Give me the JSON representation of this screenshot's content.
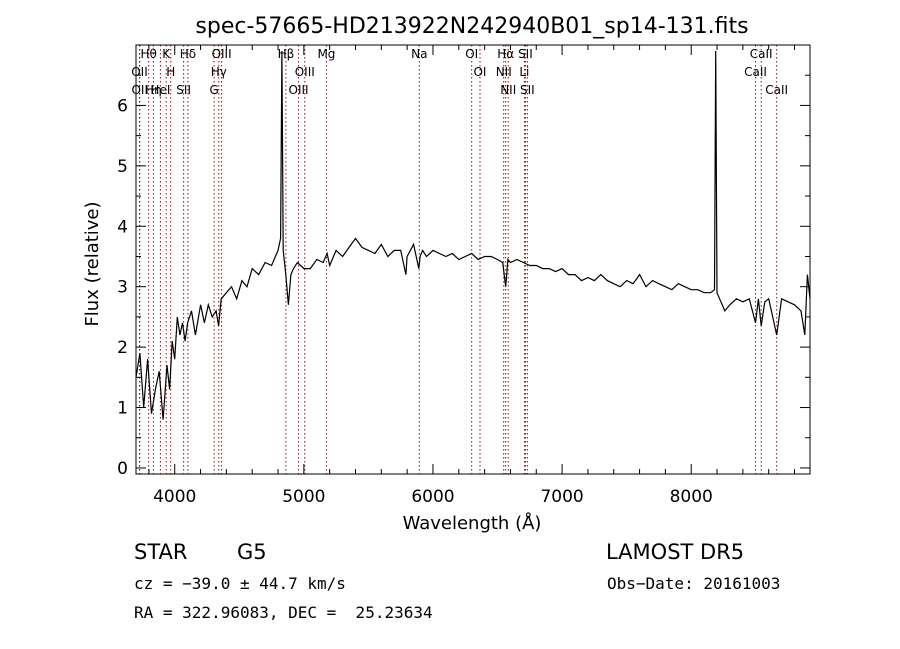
{
  "chart_data": {
    "type": "line",
    "title": "spec-57665-HD213922N242940B01_sp14-131.fits",
    "xlabel": "Wavelength (Å)",
    "ylabel": "Flux (relative)",
    "xlim": [
      3700,
      8920
    ],
    "ylim": [
      -0.1,
      7.0
    ],
    "xticks": [
      4000,
      5000,
      6000,
      7000,
      8000
    ],
    "yticks": [
      0,
      1,
      2,
      3,
      4,
      5,
      6
    ],
    "grid": false,
    "series": [
      {
        "x": [
          3700,
          3730,
          3760,
          3790,
          3820,
          3850,
          3880,
          3910,
          3940,
          3960,
          3980,
          4000,
          4020,
          4040,
          4060,
          4080,
          4100,
          4130,
          4160,
          4200,
          4230,
          4260,
          4290,
          4320,
          4340,
          4360,
          4400,
          4440,
          4480,
          4520,
          4560,
          4600,
          4650,
          4700,
          4750,
          4780,
          4800,
          4820,
          4830,
          4840,
          4860,
          4880,
          4900,
          4920,
          4950,
          5000,
          5050,
          5100,
          5150,
          5180,
          5200,
          5250,
          5300,
          5350,
          5400,
          5450,
          5500,
          5550,
          5600,
          5650,
          5700,
          5750,
          5790,
          5800,
          5850,
          5890,
          5900,
          5920,
          5950,
          6000,
          6050,
          6100,
          6150,
          6200,
          6250,
          6300,
          6350,
          6400,
          6450,
          6500,
          6540,
          6563,
          6580,
          6600,
          6650,
          6700,
          6750,
          6800,
          6850,
          6900,
          6950,
          7000,
          7050,
          7100,
          7150,
          7200,
          7250,
          7300,
          7350,
          7400,
          7450,
          7500,
          7550,
          7600,
          7650,
          7700,
          7750,
          7800,
          7850,
          7900,
          7950,
          8000,
          8050,
          8100,
          8150,
          8180,
          8190,
          8200,
          8220,
          8240,
          8260,
          8300,
          8350,
          8400,
          8450,
          8498,
          8520,
          8542,
          8570,
          8600,
          8662,
          8700,
          8750,
          8800,
          8850,
          8880,
          8900,
          8920
        ],
        "y": [
          1.5,
          1.9,
          1.0,
          1.8,
          0.9,
          1.3,
          1.6,
          0.8,
          1.7,
          1.3,
          2.1,
          1.8,
          2.5,
          2.2,
          2.4,
          2.1,
          2.4,
          2.6,
          2.2,
          2.7,
          2.4,
          2.7,
          2.5,
          2.6,
          2.35,
          2.8,
          2.9,
          3.0,
          2.8,
          3.1,
          3.0,
          3.3,
          3.2,
          3.4,
          3.35,
          3.5,
          3.6,
          3.8,
          6.9,
          3.6,
          3.2,
          2.7,
          3.2,
          3.3,
          3.4,
          3.3,
          3.3,
          3.45,
          3.4,
          3.55,
          3.35,
          3.6,
          3.5,
          3.65,
          3.8,
          3.65,
          3.6,
          3.55,
          3.7,
          3.5,
          3.6,
          3.6,
          3.2,
          3.5,
          3.7,
          3.3,
          3.5,
          3.6,
          3.5,
          3.6,
          3.55,
          3.5,
          3.55,
          3.45,
          3.5,
          3.55,
          3.45,
          3.5,
          3.5,
          3.45,
          3.4,
          3.0,
          3.45,
          3.4,
          3.45,
          3.4,
          3.35,
          3.35,
          3.3,
          3.3,
          3.25,
          3.3,
          3.2,
          3.2,
          3.1,
          3.15,
          3.1,
          3.2,
          3.1,
          3.05,
          3.0,
          3.1,
          3.05,
          3.2,
          3.0,
          3.1,
          3.05,
          3.0,
          2.95,
          3.05,
          3.0,
          2.95,
          2.95,
          2.9,
          2.9,
          2.95,
          6.9,
          2.9,
          2.8,
          2.7,
          2.6,
          2.7,
          2.8,
          2.75,
          2.8,
          2.4,
          2.8,
          2.35,
          2.75,
          2.8,
          2.2,
          2.8,
          2.75,
          2.7,
          2.6,
          2.2,
          3.2,
          2.8
        ]
      }
    ],
    "line_markers": [
      {
        "label": "Hθ",
        "x": 3798
      },
      {
        "label": "OII",
        "x": 3727
      },
      {
        "label": "OII",
        "x": 3729
      },
      {
        "label": "Hη",
        "x": 3835
      },
      {
        "label": "K",
        "x": 3934
      },
      {
        "label": "HeI",
        "x": 3889
      },
      {
        "label": "H",
        "x": 3969
      },
      {
        "label": "Hδ",
        "x": 4102
      },
      {
        "label": "SII",
        "x": 4069
      },
      {
        "label": "OIII",
        "x": 4363
      },
      {
        "label": "Hγ",
        "x": 4341
      },
      {
        "label": "G",
        "x": 4305
      },
      {
        "label": "Hβ",
        "x": 4861
      },
      {
        "label": "OIII",
        "x": 5007
      },
      {
        "label": "OIII",
        "x": 4959
      },
      {
        "label": "Mg",
        "x": 5175
      },
      {
        "label": "Na",
        "x": 5894
      },
      {
        "label": "OI",
        "x": 6300
      },
      {
        "label": "OI",
        "x": 6364
      },
      {
        "label": "Hα",
        "x": 6563
      },
      {
        "label": "NII",
        "x": 6548
      },
      {
        "label": "NII",
        "x": 6583
      },
      {
        "label": "SII",
        "x": 6716
      },
      {
        "label": "Li",
        "x": 6708
      },
      {
        "label": "SII",
        "x": 6731
      },
      {
        "label": "CaII",
        "x": 8542
      },
      {
        "label": "CaII",
        "x": 8498
      },
      {
        "label": "CaII",
        "x": 8662
      }
    ]
  },
  "info": {
    "object_type": "STAR",
    "subclass": "G5",
    "survey": "LAMOST DR5",
    "cz": "cz = −39.0 ± 44.7 km/s",
    "obs_date": "Obs−Date: 20161003",
    "coords": "RA = 322.96083, DEC =  25.23634"
  },
  "colors": {
    "line_marker": "#aa0000",
    "spectrum": "#000000"
  }
}
